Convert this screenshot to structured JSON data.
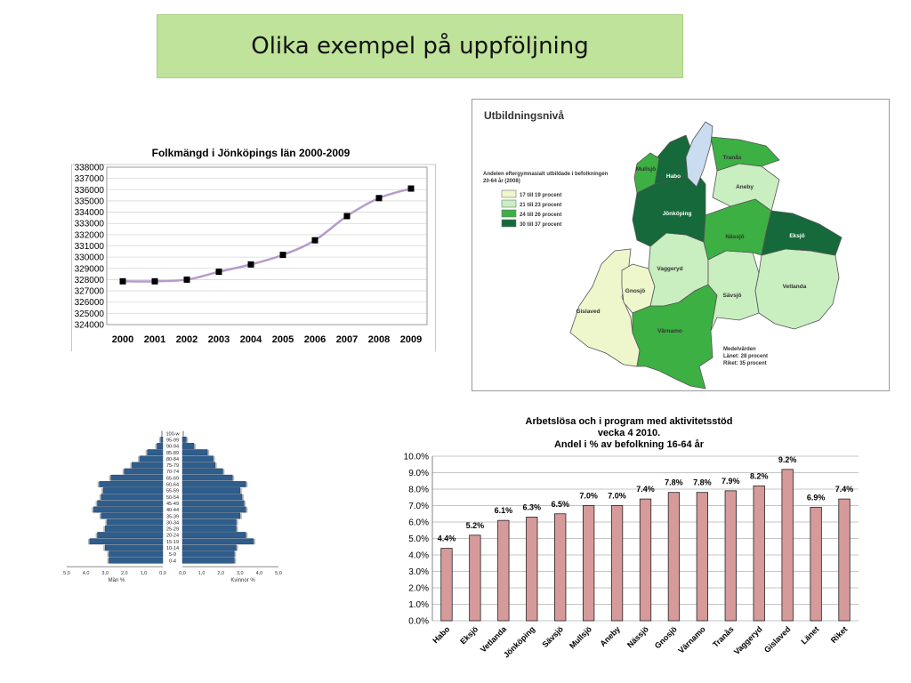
{
  "slide": {
    "title": "Olika exempel på uppföljning"
  },
  "colors": {
    "title_bg": "#bfe39a",
    "line": "#b59cc9",
    "marker": "#000000",
    "bar": "#d69a9a",
    "pyramid": "#2f5d8c",
    "pyramid_grey": "#b5b5b5",
    "map_c1": "#eef7cc",
    "map_c2": "#c9eec0",
    "map_c3": "#3cb043",
    "map_c4": "#15693a",
    "lake": "#c9dcf0"
  },
  "chart_data": [
    {
      "type": "line",
      "title": "Folkmängd i Jönköpings län 2000-2009",
      "x": [
        "2000",
        "2001",
        "2002",
        "2003",
        "2004",
        "2005",
        "2006",
        "2007",
        "2008",
        "2009"
      ],
      "series": [
        {
          "values": [
            327850,
            327850,
            328000,
            328700,
            329350,
            330200,
            331500,
            333650,
            335250,
            336100
          ]
        }
      ],
      "ylim": [
        324000,
        338000
      ],
      "yticks": [
        "324000",
        "325000",
        "326000",
        "327000",
        "328000",
        "329000",
        "330000",
        "331000",
        "332000",
        "333000",
        "334000",
        "335000",
        "336000",
        "337000",
        "338000"
      ],
      "grid": true
    },
    {
      "type": "bar",
      "orientation": "horizontal",
      "categories": [
        "100-w",
        "95-99",
        "90-94",
        "85-89",
        "80-84",
        "75-79",
        "70-74",
        "65-69",
        "60-64",
        "55-59",
        "50-54",
        "45-49",
        "40-44",
        "35-39",
        "30-34",
        "25-29",
        "20-24",
        "15-19",
        "10-14",
        "5-9",
        "0-4"
      ],
      "series": [
        {
          "name": "Män %",
          "values": [
            0.0,
            0.1,
            0.3,
            0.8,
            1.2,
            1.6,
            2.0,
            2.7,
            3.3,
            3.1,
            3.2,
            3.4,
            3.6,
            3.2,
            2.9,
            3.0,
            3.4,
            3.8,
            3.0,
            2.8,
            2.8
          ]
        },
        {
          "name": "Kvinnor %",
          "values": [
            0.0,
            0.2,
            0.6,
            1.3,
            1.6,
            1.7,
            2.1,
            2.6,
            3.3,
            3.0,
            3.1,
            3.2,
            3.3,
            3.0,
            2.8,
            2.8,
            3.3,
            3.7,
            2.8,
            2.7,
            2.7
          ]
        }
      ],
      "xticks": [
        "5,0",
        "4,0",
        "3,0",
        "2,0",
        "1,0",
        "0,0",
        "0,0",
        "1,0",
        "2,0",
        "3,0",
        "4,0",
        "5,0"
      ],
      "xlabel_left": "Män %",
      "xlabel_right": "Kvinnor %"
    },
    {
      "type": "bar",
      "title": "Arbetslösa och i program med aktivitetsstöd",
      "subtitle": "vecka 4 2010.",
      "subtitle2": "Andel i % av befolkning 16-64 år",
      "categories": [
        "Habo",
        "Eksjö",
        "Vetlanda",
        "Jönköping",
        "Sävsjö",
        "Mullsjö",
        "Aneby",
        "Nässjö",
        "Gnosjö",
        "Värnamo",
        "Tranås",
        "Vaggeryd",
        "Gislaved",
        "Länet",
        "Riket"
      ],
      "values": [
        4.4,
        5.2,
        6.1,
        6.3,
        6.5,
        7.0,
        7.0,
        7.4,
        7.8,
        7.8,
        7.9,
        8.2,
        9.2,
        6.9,
        7.4
      ],
      "data_labels": [
        "4.4%",
        "5.2%",
        "6.1%",
        "6.3%",
        "6.5%",
        "7.0%",
        "7.0%",
        "7.4%",
        "7.8%",
        "7.8%",
        "7.9%",
        "8.2%",
        "9.2%",
        "6.9%",
        "7.4%"
      ],
      "ylim": [
        0,
        10
      ],
      "yticks": [
        "0.0%",
        "1.0%",
        "2.0%",
        "3.0%",
        "4.0%",
        "5.0%",
        "6.0%",
        "7.0%",
        "8.0%",
        "9.0%",
        "10.0%"
      ],
      "grid": true
    }
  ],
  "map": {
    "title": "Utbildningsnivå",
    "legend_title": "Andelen eftergymnasialt utbildade i befolkningen 20-64 år (2008)",
    "legend_items": [
      "17 till 19 procent",
      "21 till 23 procent",
      "24 till 26 procent",
      "30 till 37 procent"
    ],
    "regions": [
      {
        "name": "Mullsjö",
        "cls": 3
      },
      {
        "name": "Habo",
        "cls": 4
      },
      {
        "name": "Tranås",
        "cls": 3
      },
      {
        "name": "Aneby",
        "cls": 2
      },
      {
        "name": "Jönköping",
        "cls": 4
      },
      {
        "name": "Nässjö",
        "cls": 3
      },
      {
        "name": "Eksjö",
        "cls": 4
      },
      {
        "name": "Vaggeryd",
        "cls": 2
      },
      {
        "name": "Gnosjö",
        "cls": 1
      },
      {
        "name": "Sävsjö",
        "cls": 2
      },
      {
        "name": "Vetlanda",
        "cls": 2
      },
      {
        "name": "Gislaved",
        "cls": 1
      },
      {
        "name": "Värnamo",
        "cls": 3
      }
    ],
    "footnote_title": "Medelvärden",
    "footnote_lines": [
      "Länet: 28 procent",
      "Riket: 35 procent"
    ]
  }
}
